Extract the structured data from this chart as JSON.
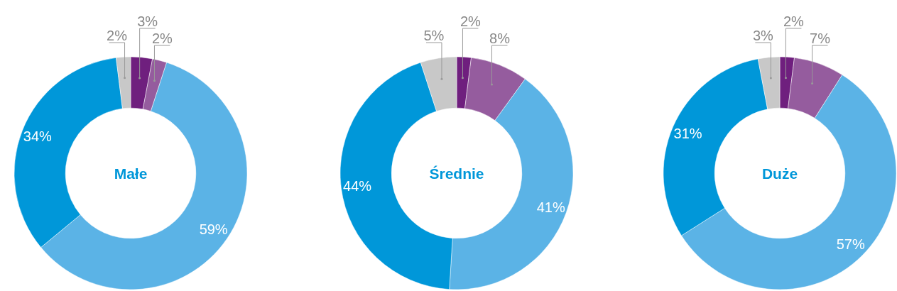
{
  "chart_data": [
    {
      "type": "donut",
      "title": "Małe",
      "categories": [
        null,
        null,
        null,
        null,
        null
      ],
      "values": [
        3,
        2,
        59,
        34,
        2
      ],
      "colors": [
        "#6f1f7e",
        "#955c9e",
        "#5bb3e6",
        "#0097d9",
        "#c8c8c8"
      ],
      "value_labels": [
        "3%",
        "2%",
        "59%",
        "34%",
        "2%"
      ]
    },
    {
      "type": "donut",
      "title": "Średnie",
      "categories": [
        null,
        null,
        null,
        null,
        null
      ],
      "values": [
        2,
        8,
        41,
        44,
        5
      ],
      "colors": [
        "#6f1f7e",
        "#955c9e",
        "#5bb3e6",
        "#0097d9",
        "#c8c8c8"
      ],
      "value_labels": [
        "2%",
        "8%",
        "41%",
        "44%",
        "5%"
      ]
    },
    {
      "type": "donut",
      "title": "Duże",
      "categories": [
        null,
        null,
        null,
        null,
        null
      ],
      "values": [
        2,
        7,
        57,
        31,
        3
      ],
      "colors": [
        "#6f1f7e",
        "#955c9e",
        "#5bb3e6",
        "#0097d9",
        "#c8c8c8"
      ],
      "value_labels": [
        "2%",
        "7%",
        "57%",
        "31%",
        "3%"
      ]
    }
  ]
}
